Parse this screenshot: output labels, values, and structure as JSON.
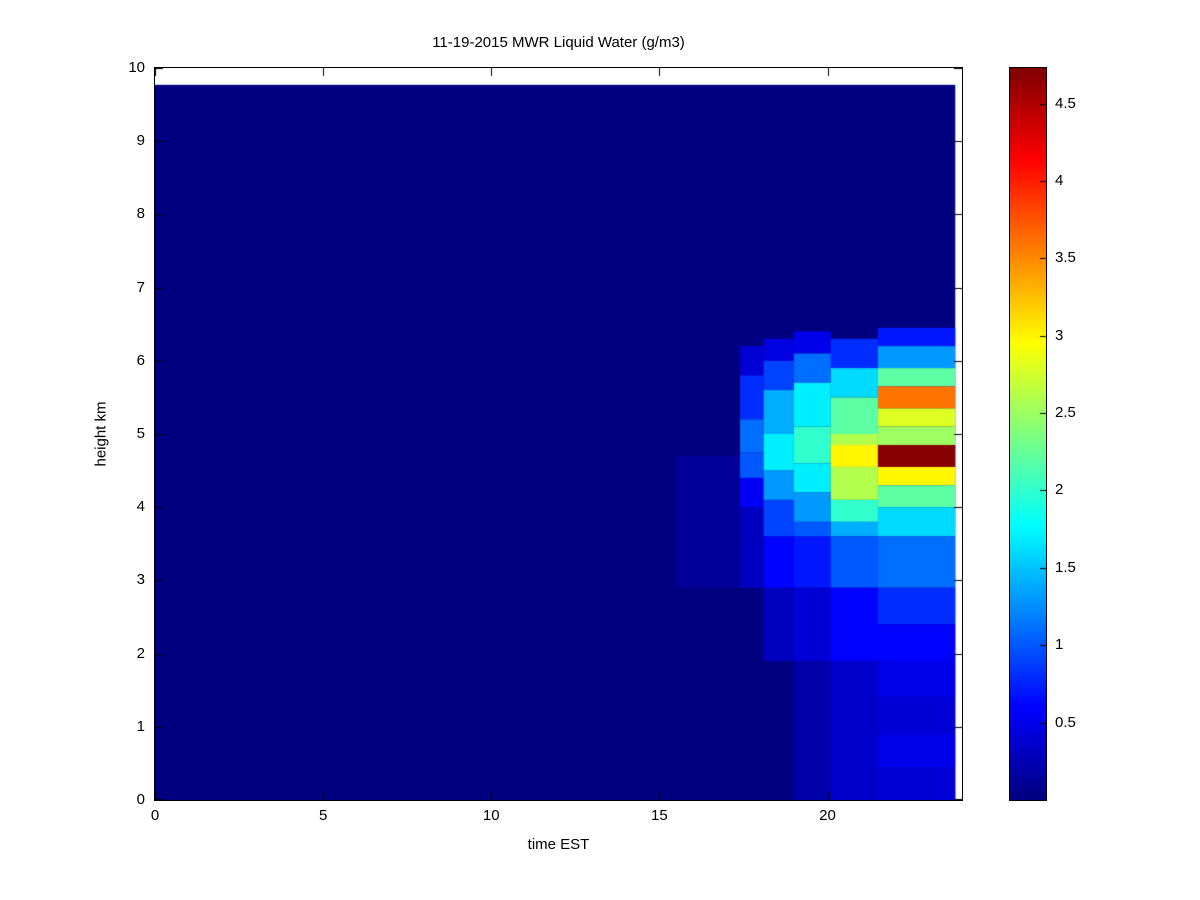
{
  "title": "11-19-2015 MWR Liquid Water (g/m3)",
  "colors": {
    "figure_background": "#ffffff",
    "axis_line": "#000000",
    "background_fill": "#000080"
  },
  "chart_data": {
    "type": "heatmap",
    "title": "11-19-2015 MWR Liquid Water (g/m3)",
    "xlabel": "time EST",
    "ylabel": "height km",
    "x_range": [
      0,
      24
    ],
    "y_range": [
      0,
      10
    ],
    "xticks": [
      0,
      5,
      10,
      15,
      20
    ],
    "yticks": [
      0,
      1,
      2,
      3,
      4,
      5,
      6,
      7,
      8,
      9,
      10
    ],
    "colormap": "jet",
    "color_axis": [
      0,
      4.73
    ],
    "colorbar_ticks": [
      0.5,
      1,
      1.5,
      2,
      2.5,
      3,
      3.5,
      4,
      4.5
    ],
    "colorbar_position": "right",
    "grid": false,
    "units": "g/m3",
    "background_value": 0,
    "data_extent": {
      "t": [
        0,
        23.8
      ],
      "h": [
        0,
        9.77
      ]
    },
    "cells_format": [
      "time_start_EST",
      "time_end_EST",
      "height_start_km",
      "height_end_km",
      "liquid_water_g_m3"
    ],
    "cells": [
      [
        15.5,
        17.4,
        2.9,
        4.7,
        0.12
      ],
      [
        17.4,
        18.1,
        5.8,
        6.2,
        0.4
      ],
      [
        17.4,
        18.1,
        5.2,
        5.8,
        0.8
      ],
      [
        17.4,
        18.1,
        4.75,
        5.2,
        1.1
      ],
      [
        17.4,
        18.1,
        4.4,
        4.75,
        1.0
      ],
      [
        17.4,
        18.1,
        4.0,
        4.4,
        0.55
      ],
      [
        17.4,
        18.1,
        2.9,
        4.0,
        0.3
      ],
      [
        18.1,
        19.0,
        6.0,
        6.3,
        0.45
      ],
      [
        18.1,
        19.0,
        5.6,
        6.0,
        0.9
      ],
      [
        18.1,
        19.0,
        5.0,
        5.6,
        1.4
      ],
      [
        18.1,
        19.0,
        4.5,
        5.0,
        1.7
      ],
      [
        18.1,
        19.0,
        4.1,
        4.5,
        1.3
      ],
      [
        18.1,
        19.0,
        3.6,
        4.1,
        0.9
      ],
      [
        18.1,
        19.0,
        2.9,
        3.6,
        0.6
      ],
      [
        18.1,
        19.0,
        1.9,
        2.9,
        0.3
      ],
      [
        19.0,
        20.1,
        6.1,
        6.4,
        0.5
      ],
      [
        19.0,
        20.1,
        5.7,
        6.1,
        1.1
      ],
      [
        19.0,
        20.1,
        5.1,
        5.7,
        1.7
      ],
      [
        19.0,
        20.1,
        4.6,
        5.1,
        2.0
      ],
      [
        19.0,
        20.1,
        4.2,
        4.6,
        1.7
      ],
      [
        19.0,
        20.1,
        3.8,
        4.2,
        1.3
      ],
      [
        19.0,
        20.1,
        3.6,
        3.8,
        1.0
      ],
      [
        19.0,
        20.1,
        2.9,
        3.6,
        0.7
      ],
      [
        19.0,
        20.1,
        1.9,
        2.9,
        0.4
      ],
      [
        19.0,
        20.1,
        0.0,
        1.9,
        0.2
      ],
      [
        20.1,
        21.5,
        5.9,
        6.3,
        0.8
      ],
      [
        20.1,
        21.5,
        5.5,
        5.9,
        1.6
      ],
      [
        20.1,
        21.5,
        5.0,
        5.5,
        2.2
      ],
      [
        20.1,
        21.5,
        4.85,
        5.0,
        2.6
      ],
      [
        20.1,
        21.5,
        4.55,
        4.85,
        3.0
      ],
      [
        20.1,
        21.5,
        4.1,
        4.55,
        2.6
      ],
      [
        20.1,
        21.5,
        3.8,
        4.1,
        2.0
      ],
      [
        20.1,
        21.5,
        3.6,
        3.8,
        1.4
      ],
      [
        20.1,
        21.5,
        2.9,
        3.6,
        1.0
      ],
      [
        20.1,
        21.5,
        1.9,
        2.9,
        0.6
      ],
      [
        20.1,
        21.5,
        0.0,
        1.9,
        0.35
      ],
      [
        21.5,
        23.8,
        6.2,
        6.45,
        0.7
      ],
      [
        21.5,
        23.8,
        5.9,
        6.2,
        1.3
      ],
      [
        21.5,
        23.8,
        5.65,
        5.9,
        2.2
      ],
      [
        21.5,
        23.8,
        5.35,
        5.65,
        3.6
      ],
      [
        21.5,
        23.8,
        5.1,
        5.35,
        2.8
      ],
      [
        21.5,
        23.8,
        4.85,
        5.1,
        2.5
      ],
      [
        21.5,
        23.8,
        4.55,
        4.85,
        4.7
      ],
      [
        21.5,
        23.8,
        4.3,
        4.55,
        3.0
      ],
      [
        21.5,
        23.8,
        4.0,
        4.3,
        2.2
      ],
      [
        21.5,
        23.8,
        3.6,
        4.0,
        1.6
      ],
      [
        21.5,
        23.8,
        2.9,
        3.6,
        1.1
      ],
      [
        21.5,
        23.8,
        2.4,
        2.9,
        0.8
      ],
      [
        21.5,
        23.8,
        1.9,
        2.4,
        0.6
      ],
      [
        21.5,
        23.8,
        1.4,
        1.9,
        0.5
      ],
      [
        21.5,
        23.8,
        0.9,
        1.4,
        0.4
      ],
      [
        21.5,
        23.8,
        0.45,
        0.9,
        0.5
      ],
      [
        21.5,
        23.8,
        0.0,
        0.45,
        0.4
      ]
    ]
  }
}
